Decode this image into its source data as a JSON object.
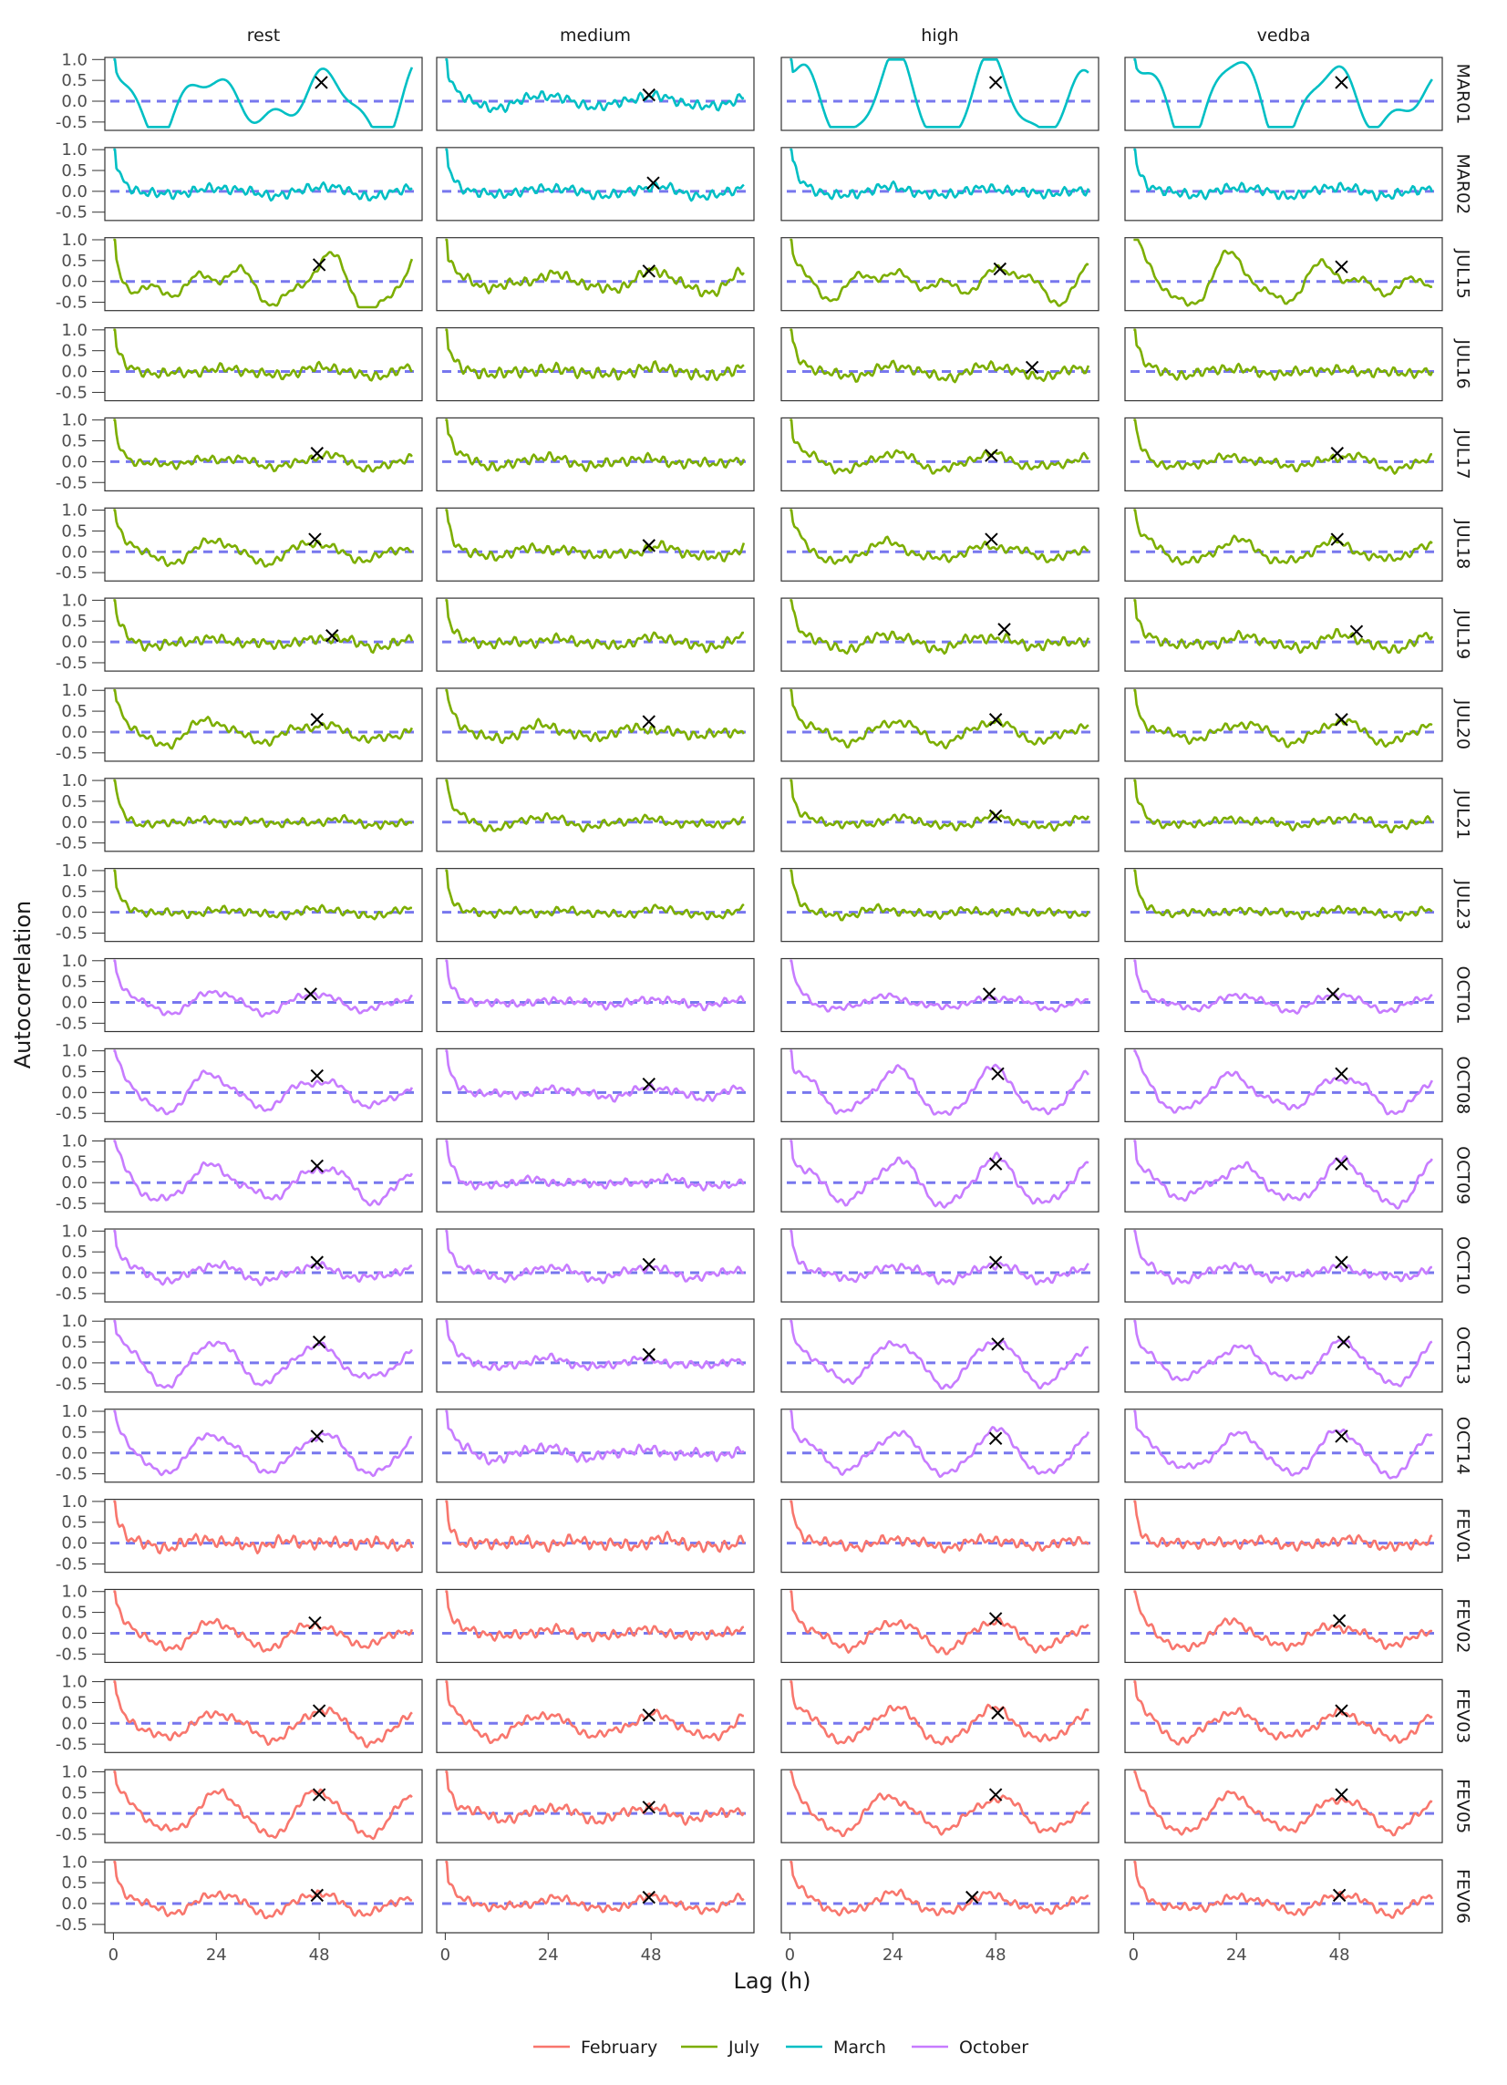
{
  "chart_data": {
    "type": "line",
    "xlabel": "Lag (h)",
    "ylabel": "Autocorrelation",
    "facet_columns": [
      "rest",
      "medium",
      "high",
      "vedba"
    ],
    "facet_rows": [
      "MAR01",
      "MAR02",
      "JUL15",
      "JUL16",
      "JUL17",
      "JUL18",
      "JUL19",
      "JUL20",
      "JUL21",
      "JUL23",
      "OCT01",
      "OCT08",
      "OCT09",
      "OCT10",
      "OCT13",
      "OCT14",
      "FEV01",
      "FEV02",
      "FEV03",
      "FEV05",
      "FEV06"
    ],
    "row_month": [
      "March",
      "March",
      "July",
      "July",
      "July",
      "July",
      "July",
      "July",
      "July",
      "July",
      "October",
      "October",
      "October",
      "October",
      "October",
      "October",
      "February",
      "February",
      "February",
      "February",
      "February"
    ],
    "x_ticks": [
      0,
      24,
      48
    ],
    "x_tick_labels": [
      "0",
      "24",
      "48"
    ],
    "xlim": [
      -2,
      72
    ],
    "y_ticks": [
      1.0,
      0.5,
      0.0,
      -0.5
    ],
    "y_tick_labels": [
      "1.0",
      "0.5",
      "0.0",
      "-0.5"
    ],
    "ylim": [
      -0.7,
      1.05
    ],
    "reference_line": {
      "y": 0,
      "style": "dashed",
      "color": "#7777ee"
    },
    "legend": {
      "position": "bottom",
      "entries": [
        {
          "name": "February",
          "color": "#F8766D"
        },
        {
          "name": "July",
          "color": "#7CAE00"
        },
        {
          "name": "March",
          "color": "#00BFC4"
        },
        {
          "name": "October",
          "color": "#C77CFF"
        }
      ]
    },
    "series_profiles": {
      "MAR01": {
        "rest": [
          0.75,
          0.55,
          0.0,
          0.0
        ],
        "medium": [
          0.15,
          0.05,
          0.0,
          0.5
        ],
        "high": [
          0.75,
          0.55,
          0.0,
          0.0
        ],
        "vedba": [
          0.75,
          0.55,
          0.0,
          0.0
        ]
      },
      "MAR02": {
        "rest": [
          0.1,
          0.05,
          0.0,
          0.5
        ],
        "medium": [
          0.1,
          0.05,
          0.0,
          0.5
        ],
        "high": [
          0.08,
          0.05,
          0.0,
          0.5
        ],
        "vedba": [
          0.08,
          0.05,
          0.0,
          0.5
        ]
      },
      "JUL15": {
        "rest": [
          0.45,
          0.45,
          -0.05,
          0.3
        ],
        "medium": [
          0.2,
          0.12,
          0.0,
          0.5
        ],
        "high": [
          0.32,
          0.35,
          0.0,
          0.3
        ],
        "vedba": [
          0.38,
          0.4,
          0.0,
          0.3
        ]
      },
      "JUL16": {
        "rest": [
          0.08,
          0.06,
          0.0,
          0.5
        ],
        "medium": [
          0.08,
          0.05,
          0.0,
          0.6
        ],
        "high": [
          0.1,
          0.08,
          0.0,
          0.5
        ],
        "vedba": [
          0.06,
          0.06,
          0.0,
          0.5
        ]
      },
      "JUL17": {
        "rest": [
          0.12,
          0.1,
          0.0,
          0.4
        ],
        "medium": [
          0.08,
          0.07,
          0.0,
          0.5
        ],
        "high": [
          0.15,
          0.1,
          0.0,
          0.4
        ],
        "vedba": [
          0.15,
          0.1,
          0.0,
          0.4
        ]
      },
      "JUL18": {
        "rest": [
          0.2,
          0.12,
          0.0,
          0.4
        ],
        "medium": [
          0.12,
          0.1,
          0.0,
          0.5
        ],
        "high": [
          0.2,
          0.12,
          0.0,
          0.4
        ],
        "vedba": [
          0.2,
          0.12,
          0.0,
          0.4
        ]
      },
      "JUL19": {
        "rest": [
          0.1,
          0.08,
          0.0,
          0.5
        ],
        "medium": [
          0.08,
          0.08,
          0.0,
          0.5
        ],
        "high": [
          0.12,
          0.1,
          0.0,
          0.5
        ],
        "vedba": [
          0.12,
          0.1,
          0.0,
          0.5
        ]
      },
      "JUL20": {
        "rest": [
          0.25,
          0.15,
          0.0,
          0.4
        ],
        "medium": [
          0.12,
          0.1,
          0.0,
          0.5
        ],
        "high": [
          0.2,
          0.12,
          0.0,
          0.4
        ],
        "vedba": [
          0.2,
          0.12,
          0.0,
          0.4
        ]
      },
      "JUL21": {
        "rest": [
          0.05,
          0.08,
          0.0,
          0.4
        ],
        "medium": [
          0.1,
          0.08,
          0.0,
          0.4
        ],
        "high": [
          0.08,
          0.08,
          0.0,
          0.4
        ],
        "vedba": [
          0.1,
          0.08,
          0.0,
          0.4
        ]
      },
      "JUL23": {
        "rest": [
          0.05,
          0.06,
          0.0,
          0.4
        ],
        "medium": [
          0.05,
          0.08,
          0.0,
          0.4
        ],
        "high": [
          0.05,
          0.08,
          0.0,
          0.4
        ],
        "vedba": [
          0.05,
          0.06,
          0.0,
          0.4
        ]
      },
      "OCT01": {
        "rest": [
          0.2,
          0.1,
          0.0,
          0.3
        ],
        "medium": [
          0.05,
          0.05,
          0.0,
          0.4
        ],
        "high": [
          0.15,
          0.08,
          0.0,
          0.3
        ],
        "vedba": [
          0.15,
          0.08,
          0.0,
          0.3
        ]
      },
      "OCT08": {
        "rest": [
          0.4,
          0.2,
          0.0,
          0.3
        ],
        "medium": [
          0.08,
          0.08,
          0.0,
          0.4
        ],
        "high": [
          0.45,
          0.2,
          0.0,
          0.3
        ],
        "vedba": [
          0.45,
          0.2,
          0.0,
          0.3
        ]
      },
      "OCT09": {
        "rest": [
          0.45,
          0.2,
          0.0,
          0.35
        ],
        "medium": [
          0.08,
          0.1,
          0.0,
          0.4
        ],
        "high": [
          0.45,
          0.2,
          0.0,
          0.35
        ],
        "vedba": [
          0.45,
          0.2,
          0.0,
          0.35
        ]
      },
      "OCT10": {
        "rest": [
          0.15,
          0.08,
          0.0,
          0.4
        ],
        "medium": [
          0.1,
          0.08,
          0.0,
          0.4
        ],
        "high": [
          0.15,
          0.08,
          0.0,
          0.4
        ],
        "vedba": [
          0.15,
          0.08,
          0.0,
          0.4
        ]
      },
      "OCT13": {
        "rest": [
          0.45,
          0.15,
          0.0,
          0.3
        ],
        "medium": [
          0.08,
          0.06,
          0.0,
          0.4
        ],
        "high": [
          0.45,
          0.15,
          0.0,
          0.3
        ],
        "vedba": [
          0.45,
          0.15,
          0.0,
          0.3
        ]
      },
      "OCT14": {
        "rest": [
          0.5,
          0.15,
          0.0,
          0.3
        ],
        "medium": [
          0.1,
          0.1,
          0.0,
          0.5
        ],
        "high": [
          0.45,
          0.15,
          0.0,
          0.3
        ],
        "vedba": [
          0.45,
          0.15,
          0.0,
          0.3
        ]
      },
      "FEV01": {
        "rest": [
          0.05,
          0.1,
          0.0,
          0.6
        ],
        "medium": [
          0.05,
          0.12,
          0.0,
          0.6
        ],
        "high": [
          0.05,
          0.08,
          0.0,
          0.5
        ],
        "vedba": [
          0.05,
          0.08,
          0.0,
          0.5
        ]
      },
      "FEV02": {
        "rest": [
          0.25,
          0.12,
          -0.05,
          0.4
        ],
        "medium": [
          0.05,
          0.06,
          0.0,
          0.5
        ],
        "high": [
          0.28,
          0.12,
          -0.05,
          0.4
        ],
        "vedba": [
          0.28,
          0.12,
          -0.05,
          0.4
        ]
      },
      "FEV03": {
        "rest": [
          0.35,
          0.12,
          -0.05,
          0.4
        ],
        "medium": [
          0.3,
          0.12,
          -0.05,
          0.4
        ],
        "high": [
          0.35,
          0.12,
          -0.05,
          0.4
        ],
        "vedba": [
          0.35,
          0.12,
          -0.05,
          0.4
        ]
      },
      "FEV05": {
        "rest": [
          0.45,
          0.15,
          0.0,
          0.35
        ],
        "medium": [
          0.1,
          0.1,
          0.0,
          0.5
        ],
        "high": [
          0.45,
          0.15,
          0.0,
          0.35
        ],
        "vedba": [
          0.45,
          0.15,
          0.0,
          0.35
        ]
      },
      "FEV06": {
        "rest": [
          0.2,
          0.1,
          0.0,
          0.4
        ],
        "medium": [
          0.12,
          0.08,
          0.0,
          0.4
        ],
        "high": [
          0.18,
          0.1,
          0.0,
          0.4
        ],
        "vedba": [
          0.18,
          0.1,
          0.0,
          0.4
        ]
      }
    },
    "peak_markers": {
      "MAR01": {
        "rest": [
          48.5,
          0.45
        ],
        "medium": [
          47.5,
          0.15
        ],
        "high": [
          48,
          0.45
        ],
        "vedba": [
          48.5,
          0.45
        ]
      },
      "MAR02": {
        "rest": null,
        "medium": [
          48.5,
          0.2
        ],
        "high": null,
        "vedba": null
      },
      "JUL15": {
        "rest": [
          48,
          0.4
        ],
        "medium": [
          47.5,
          0.25
        ],
        "high": [
          49,
          0.3
        ],
        "vedba": [
          48.5,
          0.35
        ]
      },
      "JUL16": {
        "rest": null,
        "medium": null,
        "high": [
          56.5,
          0.1
        ],
        "vedba": null
      },
      "JUL17": {
        "rest": [
          47.5,
          0.2
        ],
        "medium": null,
        "high": [
          47,
          0.15
        ],
        "vedba": [
          47.5,
          0.2
        ]
      },
      "JUL18": {
        "rest": [
          47,
          0.3
        ],
        "medium": [
          47.5,
          0.15
        ],
        "high": [
          47,
          0.3
        ],
        "vedba": [
          47.5,
          0.3
        ]
      },
      "JUL19": {
        "rest": [
          51,
          0.15
        ],
        "medium": null,
        "high": [
          50,
          0.3
        ],
        "vedba": [
          52,
          0.25
        ]
      },
      "JUL20": {
        "rest": [
          47.5,
          0.3
        ],
        "medium": [
          47.5,
          0.25
        ],
        "high": [
          48,
          0.3
        ],
        "vedba": [
          48.5,
          0.3
        ]
      },
      "JUL21": {
        "rest": null,
        "medium": null,
        "high": [
          48,
          0.15
        ],
        "vedba": null
      },
      "JUL23": {
        "rest": null,
        "medium": null,
        "high": null,
        "vedba": null
      },
      "OCT01": {
        "rest": [
          46,
          0.2
        ],
        "medium": null,
        "high": [
          46.5,
          0.2
        ],
        "vedba": [
          46.5,
          0.2
        ]
      },
      "OCT08": {
        "rest": [
          47.5,
          0.4
        ],
        "medium": [
          47.5,
          0.2
        ],
        "high": [
          48.5,
          0.45
        ],
        "vedba": [
          48.5,
          0.45
        ]
      },
      "OCT09": {
        "rest": [
          47.5,
          0.4
        ],
        "medium": null,
        "high": [
          48,
          0.45
        ],
        "vedba": [
          48.5,
          0.45
        ]
      },
      "OCT10": {
        "rest": [
          47.5,
          0.25
        ],
        "medium": [
          47.5,
          0.2
        ],
        "high": [
          48,
          0.25
        ],
        "vedba": [
          48.5,
          0.25
        ]
      },
      "OCT13": {
        "rest": [
          48,
          0.5
        ],
        "medium": [
          47.5,
          0.2
        ],
        "high": [
          48.5,
          0.45
        ],
        "vedba": [
          49,
          0.5
        ]
      },
      "OCT14": {
        "rest": [
          47.5,
          0.4
        ],
        "medium": null,
        "high": [
          48,
          0.35
        ],
        "vedba": [
          48.5,
          0.4
        ]
      },
      "FEV01": {
        "rest": null,
        "medium": null,
        "high": null,
        "vedba": null
      },
      "FEV02": {
        "rest": [
          47,
          0.25
        ],
        "medium": null,
        "high": [
          48,
          0.35
        ],
        "vedba": [
          48,
          0.3
        ]
      },
      "FEV03": {
        "rest": [
          48,
          0.3
        ],
        "medium": [
          47.5,
          0.2
        ],
        "high": [
          48.5,
          0.25
        ],
        "vedba": [
          48.5,
          0.3
        ]
      },
      "FEV05": {
        "rest": [
          48,
          0.45
        ],
        "medium": [
          47.5,
          0.15
        ],
        "high": [
          48,
          0.45
        ],
        "vedba": [
          48.5,
          0.45
        ]
      },
      "FEV06": {
        "rest": [
          47.5,
          0.2
        ],
        "medium": [
          47.5,
          0.15
        ],
        "high": [
          42.5,
          0.15
        ],
        "vedba": [
          48,
          0.2
        ]
      }
    }
  }
}
